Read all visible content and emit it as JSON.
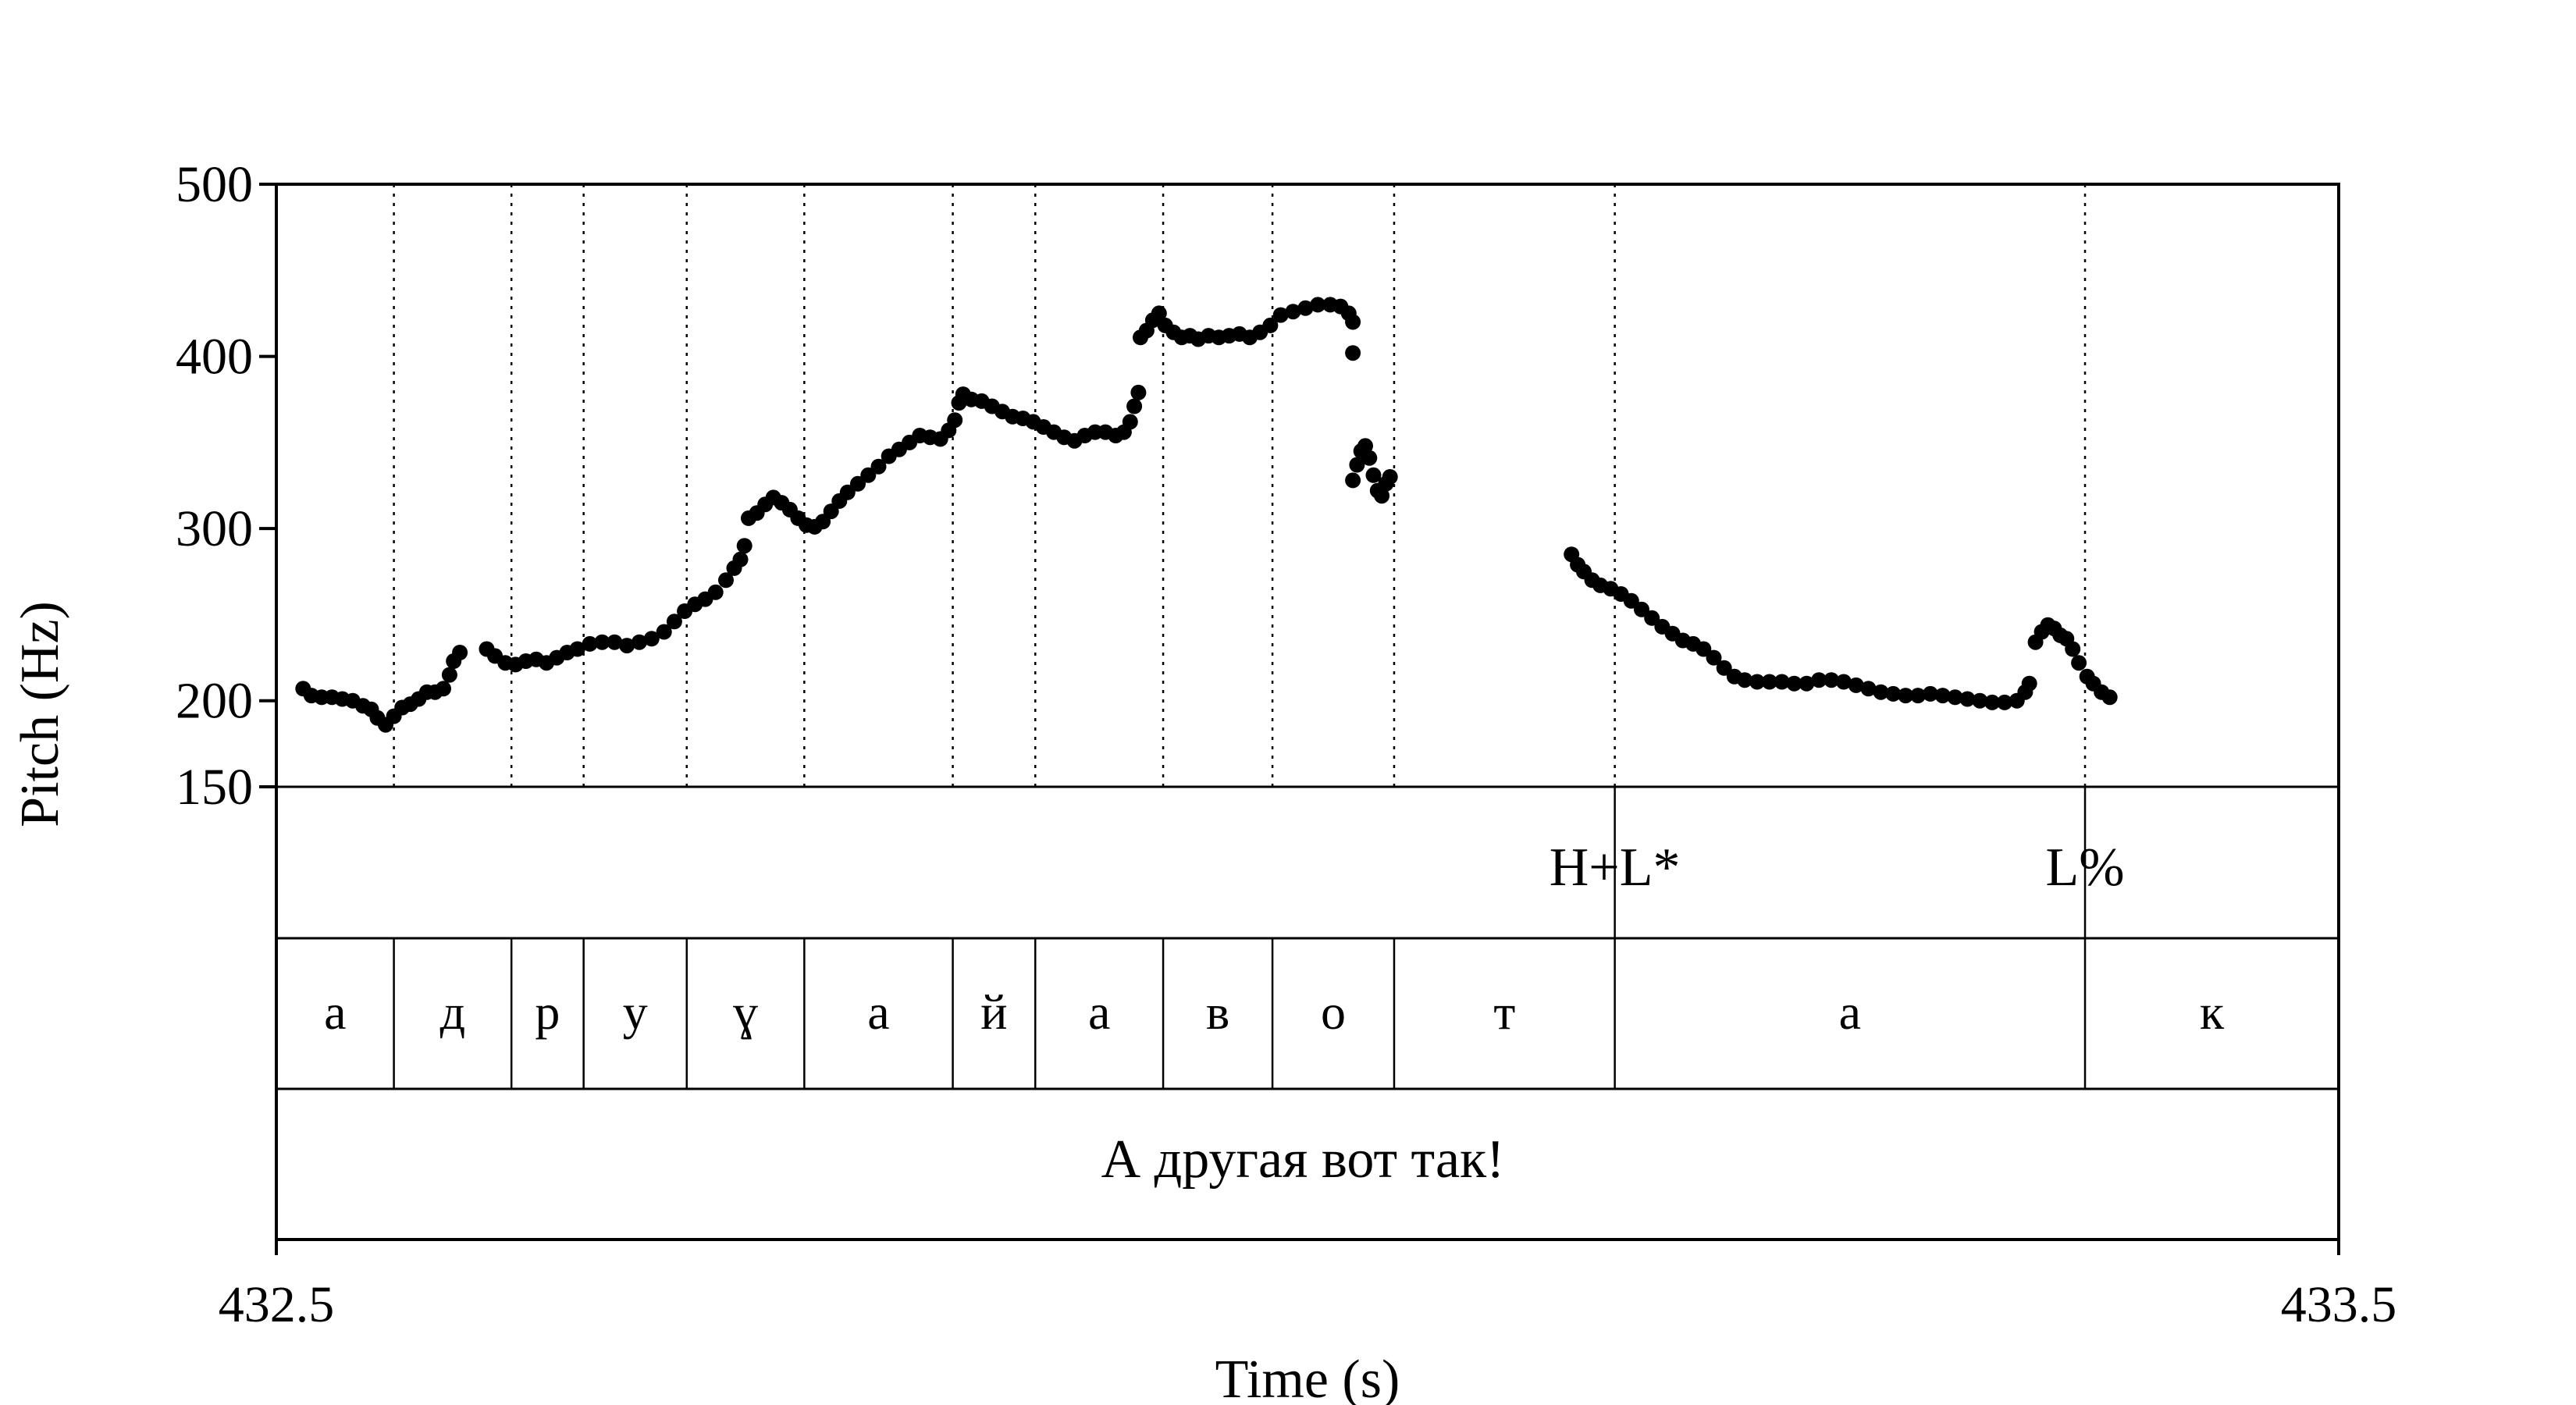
{
  "chart_data": {
    "type": "scatter",
    "xlabel": "Time (s)",
    "ylabel": "Pitch (Hz)",
    "xlim": [
      432.5,
      433.5
    ],
    "ylim": [
      150,
      500
    ],
    "x_tick_labels": [
      "432.5",
      "433.5"
    ],
    "y_ticks": [
      150,
      200,
      300,
      400,
      500
    ],
    "y_tick_labels": [
      "150",
      "200",
      "300",
      "400",
      "500"
    ],
    "grid": false,
    "pitch_contours": [
      [
        [
          432.513,
          207
        ],
        [
          432.517,
          203
        ],
        [
          432.522,
          202
        ],
        [
          432.527,
          202
        ],
        [
          432.532,
          201
        ],
        [
          432.537,
          200
        ],
        [
          432.542,
          197
        ],
        [
          432.546,
          195
        ],
        [
          432.549,
          190
        ],
        [
          432.553,
          186
        ],
        [
          432.557,
          191
        ],
        [
          432.561,
          196
        ],
        [
          432.565,
          198
        ],
        [
          432.569,
          201
        ],
        [
          432.573,
          205
        ],
        [
          432.577,
          205
        ],
        [
          432.581,
          207
        ],
        [
          432.584,
          215
        ],
        [
          432.586,
          223
        ],
        [
          432.589,
          228
        ]
      ],
      [
        [
          432.602,
          230
        ],
        [
          432.606,
          226
        ],
        [
          432.611,
          222
        ],
        [
          432.616,
          221
        ],
        [
          432.621,
          223
        ],
        [
          432.626,
          224
        ],
        [
          432.631,
          222
        ],
        [
          432.636,
          225
        ],
        [
          432.641,
          228
        ],
        [
          432.646,
          230
        ],
        [
          432.652,
          233
        ],
        [
          432.658,
          234
        ],
        [
          432.664,
          234
        ],
        [
          432.67,
          232
        ],
        [
          432.676,
          234
        ],
        [
          432.682,
          236
        ],
        [
          432.688,
          240
        ],
        [
          432.693,
          246
        ],
        [
          432.698,
          252
        ],
        [
          432.703,
          256
        ],
        [
          432.708,
          259
        ],
        [
          432.713,
          263
        ],
        [
          432.718,
          270
        ],
        [
          432.722,
          277
        ],
        [
          432.725,
          282
        ],
        [
          432.727,
          290
        ]
      ],
      [
        [
          432.729,
          306
        ],
        [
          432.733,
          309
        ],
        [
          432.737,
          314
        ],
        [
          432.741,
          318
        ],
        [
          432.745,
          315
        ],
        [
          432.749,
          311
        ],
        [
          432.753,
          306
        ],
        [
          432.757,
          302
        ],
        [
          432.761,
          301
        ],
        [
          432.765,
          304
        ],
        [
          432.769,
          310
        ],
        [
          432.773,
          316
        ],
        [
          432.777,
          321
        ],
        [
          432.782,
          326
        ],
        [
          432.787,
          331
        ],
        [
          432.792,
          336
        ],
        [
          432.797,
          342
        ],
        [
          432.802,
          346
        ],
        [
          432.807,
          350
        ],
        [
          432.812,
          354
        ],
        [
          432.817,
          353
        ],
        [
          432.822,
          352
        ],
        [
          432.826,
          357
        ],
        [
          432.829,
          363
        ],
        [
          432.831,
          373
        ],
        [
          432.833,
          378
        ],
        [
          432.837,
          375
        ],
        [
          432.842,
          374
        ],
        [
          432.847,
          371
        ],
        [
          432.852,
          368
        ],
        [
          432.857,
          365
        ],
        [
          432.862,
          364
        ],
        [
          432.867,
          362
        ],
        [
          432.872,
          359
        ],
        [
          432.877,
          356
        ],
        [
          432.882,
          353
        ],
        [
          432.887,
          351
        ],
        [
          432.892,
          354
        ],
        [
          432.897,
          356
        ],
        [
          432.902,
          356
        ],
        [
          432.907,
          354
        ],
        [
          432.911,
          356
        ],
        [
          432.914,
          362
        ],
        [
          432.916,
          371
        ],
        [
          432.918,
          379
        ]
      ],
      [
        [
          432.919,
          411
        ],
        [
          432.922,
          415
        ],
        [
          432.925,
          421
        ],
        [
          432.928,
          425
        ],
        [
          432.931,
          418
        ],
        [
          432.935,
          414
        ],
        [
          432.939,
          411
        ],
        [
          432.943,
          412
        ],
        [
          432.947,
          410
        ],
        [
          432.952,
          412
        ],
        [
          432.957,
          411
        ],
        [
          432.962,
          412
        ],
        [
          432.967,
          413
        ],
        [
          432.972,
          411
        ],
        [
          432.977,
          414
        ],
        [
          432.982,
          418
        ],
        [
          432.987,
          424
        ],
        [
          432.993,
          426
        ],
        [
          432.999,
          428
        ],
        [
          433.005,
          430
        ],
        [
          433.011,
          430
        ],
        [
          433.016,
          429
        ],
        [
          433.02,
          425
        ],
        [
          433.022,
          420
        ],
        [
          433.022,
          402
        ]
      ],
      [
        [
          433.022,
          328
        ],
        [
          433.024,
          337
        ],
        [
          433.026,
          345
        ],
        [
          433.028,
          348
        ],
        [
          433.03,
          341
        ],
        [
          433.032,
          331
        ],
        [
          433.034,
          322
        ],
        [
          433.036,
          319
        ],
        [
          433.038,
          326
        ],
        [
          433.04,
          330
        ]
      ],
      [
        [
          433.128,
          285
        ],
        [
          433.131,
          279
        ],
        [
          433.134,
          275
        ],
        [
          433.138,
          270
        ],
        [
          433.142,
          267
        ],
        [
          433.147,
          265
        ],
        [
          433.152,
          262
        ],
        [
          433.157,
          258
        ],
        [
          433.162,
          253
        ],
        [
          433.167,
          248
        ],
        [
          433.172,
          243
        ],
        [
          433.177,
          239
        ],
        [
          433.182,
          235
        ],
        [
          433.187,
          233
        ],
        [
          433.192,
          230
        ],
        [
          433.197,
          225
        ],
        [
          433.202,
          219
        ],
        [
          433.207,
          214
        ],
        [
          433.212,
          212
        ],
        [
          433.218,
          211
        ],
        [
          433.224,
          211
        ],
        [
          433.23,
          211
        ],
        [
          433.236,
          210
        ],
        [
          433.242,
          210
        ],
        [
          433.248,
          212
        ],
        [
          433.254,
          212
        ],
        [
          433.26,
          211
        ],
        [
          433.266,
          209
        ],
        [
          433.272,
          207
        ],
        [
          433.278,
          205
        ],
        [
          433.284,
          204
        ],
        [
          433.29,
          203
        ],
        [
          433.296,
          203
        ],
        [
          433.302,
          204
        ],
        [
          433.308,
          203
        ],
        [
          433.314,
          202
        ],
        [
          433.32,
          201
        ],
        [
          433.326,
          200
        ],
        [
          433.332,
          199
        ],
        [
          433.338,
          199
        ],
        [
          433.344,
          200
        ],
        [
          433.348,
          205
        ],
        [
          433.35,
          210
        ]
      ],
      [
        [
          433.353,
          234
        ],
        [
          433.356,
          240
        ],
        [
          433.359,
          244
        ],
        [
          433.362,
          242
        ],
        [
          433.365,
          238
        ],
        [
          433.368,
          236
        ],
        [
          433.371,
          230
        ],
        [
          433.374,
          222
        ],
        [
          433.378,
          214
        ],
        [
          433.381,
          210
        ],
        [
          433.385,
          205
        ],
        [
          433.389,
          202
        ]
      ]
    ],
    "tones_tier": [
      {
        "label": "H+L*",
        "time": 433.149
      },
      {
        "label": "L%",
        "time": 433.377
      }
    ],
    "segment_boundaries": [
      432.557,
      432.614,
      432.649,
      432.699,
      432.756,
      432.828,
      432.868,
      432.93,
      432.983,
      433.042,
      433.149,
      433.377
    ],
    "segments": [
      "а",
      "д",
      "р",
      "у",
      "ɣ",
      "а",
      "й",
      "а",
      "в",
      "о",
      "т",
      "а",
      "к"
    ],
    "sentence": "А другая вот так!"
  }
}
